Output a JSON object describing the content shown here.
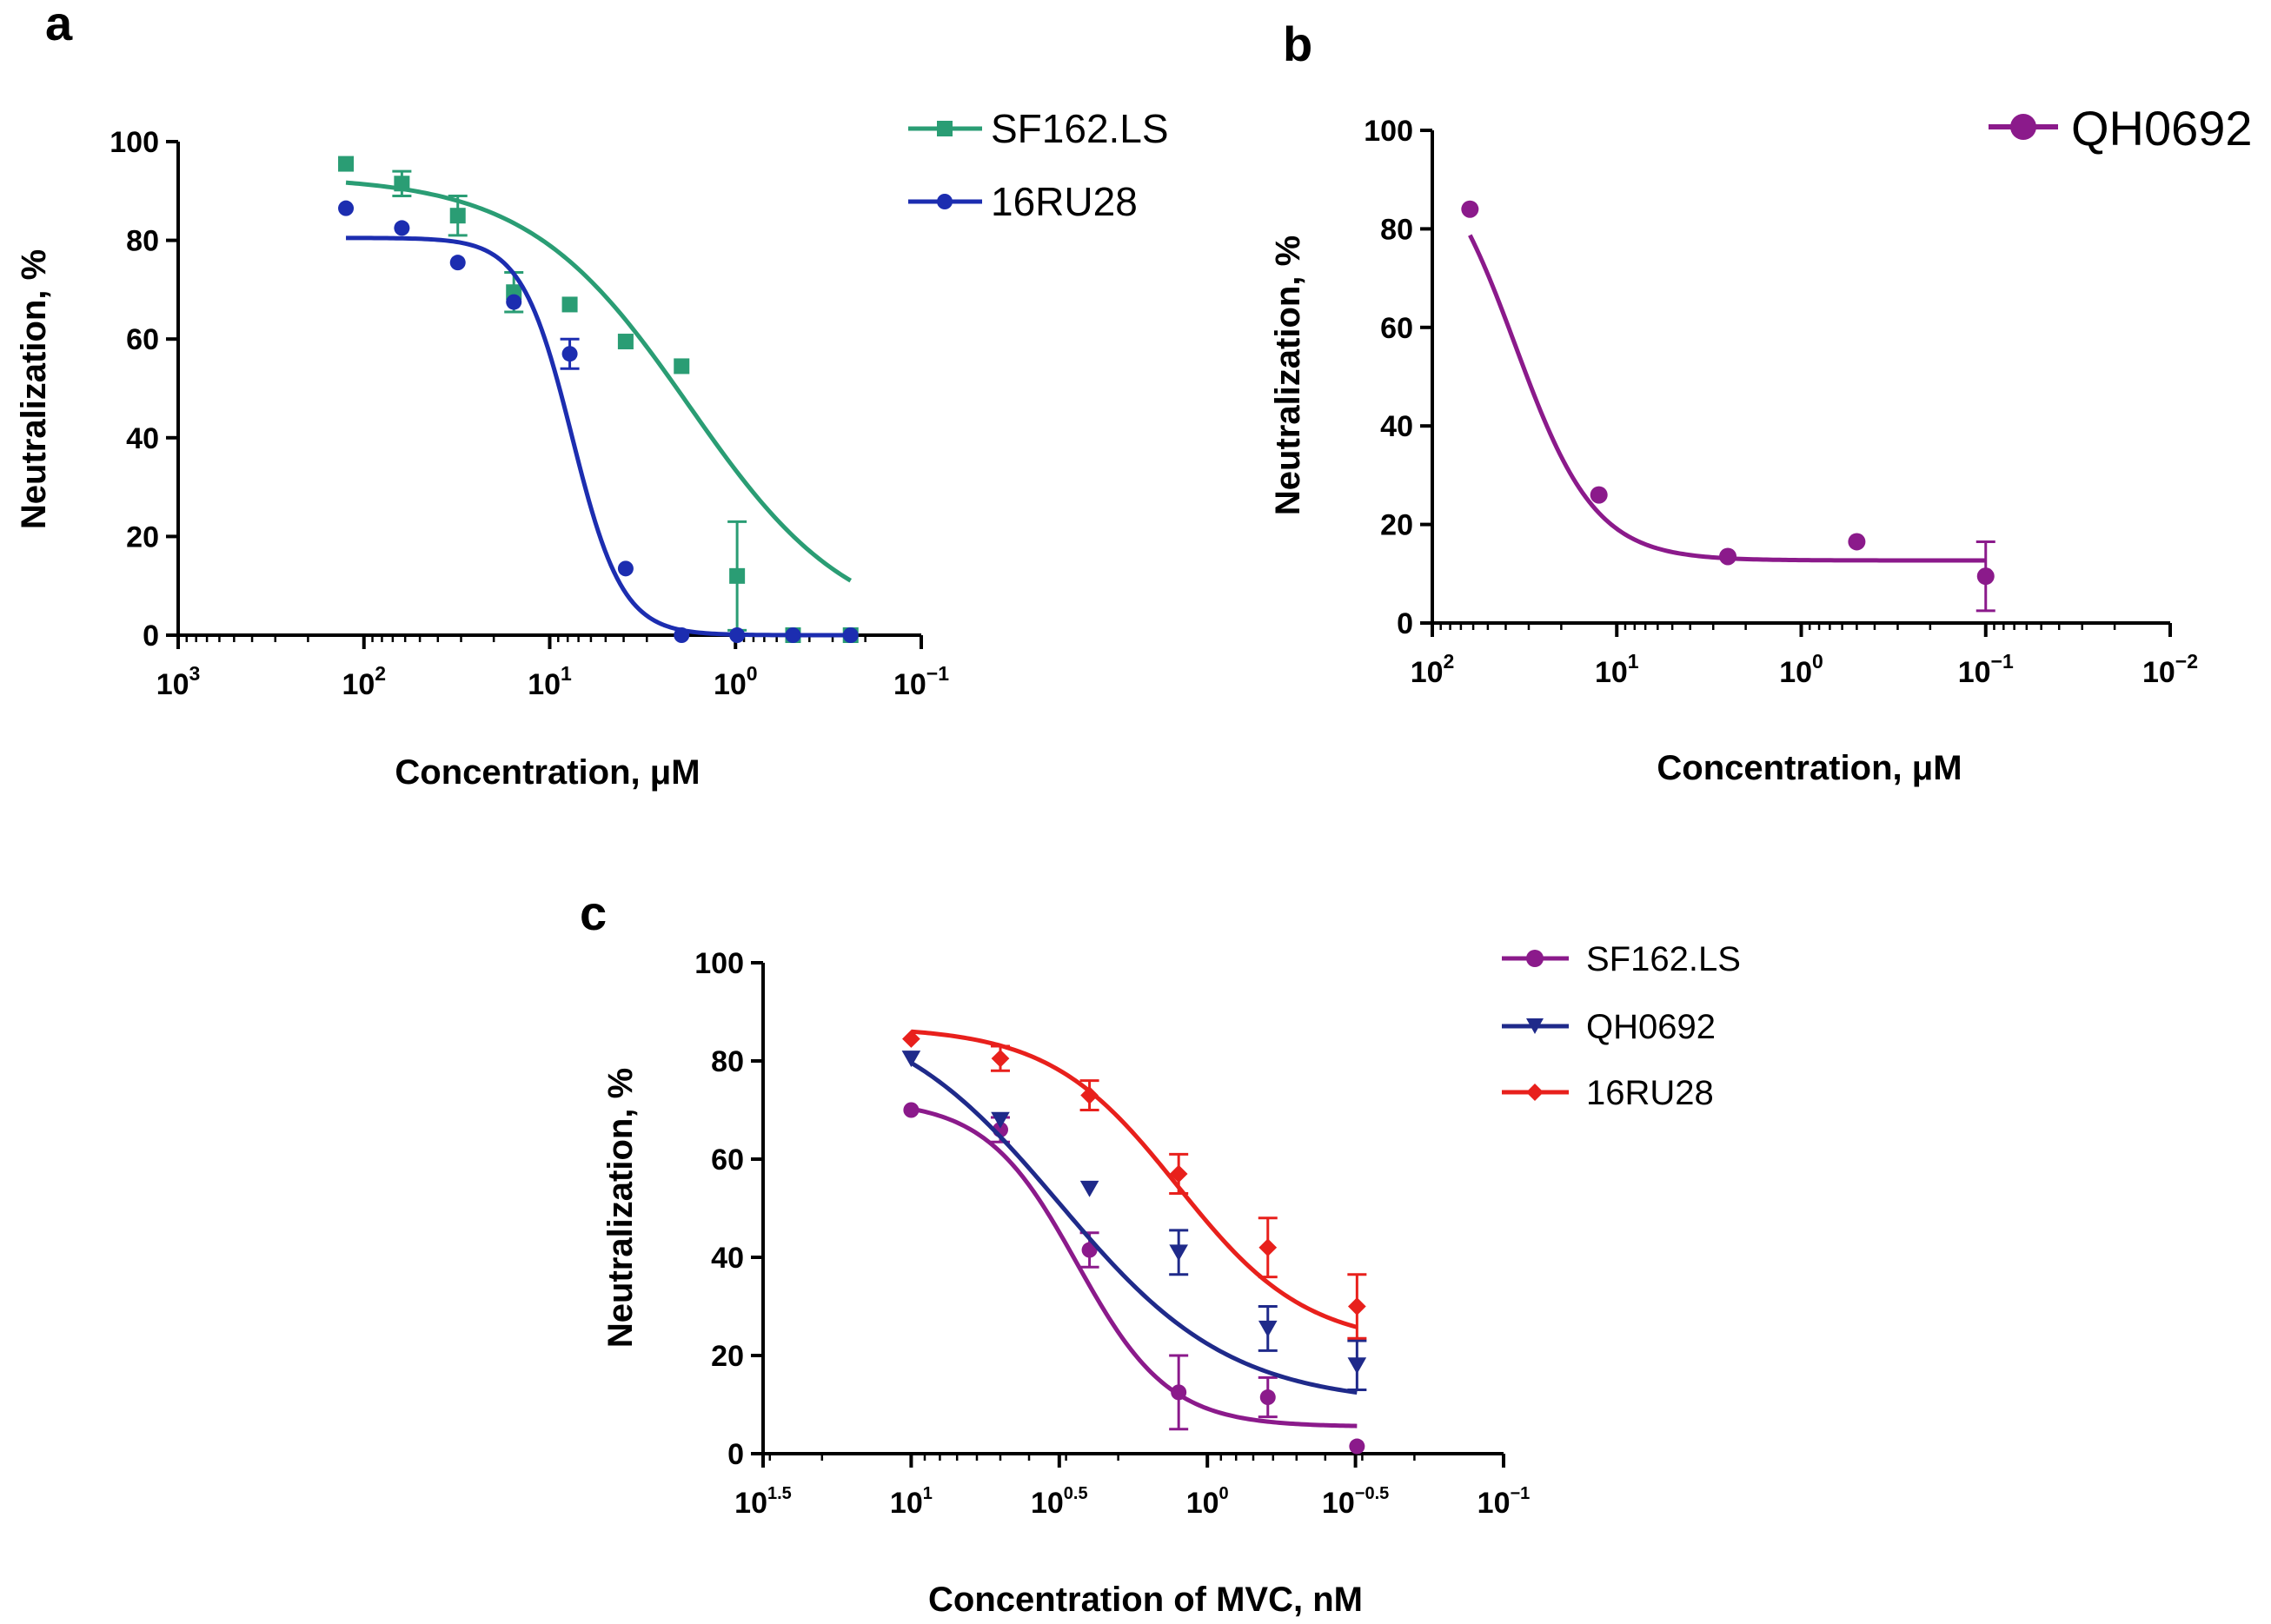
{
  "colors": {
    "green": "#2a9d74",
    "blue": "#1c2db0",
    "purple": "#8b1a8b",
    "navy": "#1f2a8a",
    "red": "#e8201c"
  },
  "chart_data": [
    {
      "id": "a",
      "panel_label": "a",
      "type": "scatter",
      "xscale": "log-reversed",
      "xlabel": "Concentration, μM",
      "ylabel": "Neutralization, %",
      "xlim_log10": [
        3,
        -1
      ],
      "ylim": [
        0,
        100
      ],
      "yticks": [
        0,
        20,
        40,
        60,
        80,
        100
      ],
      "xticks": [
        {
          "log": 3,
          "base": "10",
          "exp": "3"
        },
        {
          "log": 2,
          "base": "10",
          "exp": "2"
        },
        {
          "log": 1,
          "base": "10",
          "exp": "1"
        },
        {
          "log": 0,
          "base": "10",
          "exp": "0"
        },
        {
          "log": -1,
          "base": "10",
          "exp": "−1"
        }
      ],
      "legend_position": "top-right",
      "series": [
        {
          "name": "SF162.LS",
          "marker": "square",
          "color": "#2a9d74",
          "x": [
            125,
            62.5,
            31.25,
            15.6,
            7.8,
            3.9,
            1.95,
            0.98,
            0.49,
            0.24
          ],
          "y": [
            95.5,
            91.5,
            85,
            69.5,
            67,
            59.5,
            54.5,
            12,
            0,
            0
          ],
          "err": [
            0,
            2.5,
            4,
            4,
            0,
            0,
            0,
            11,
            0,
            0
          ],
          "fit": {
            "top": 93,
            "bottom": 0,
            "logEC50": 0.25,
            "slope": 1.0
          }
        },
        {
          "name": "16RU28",
          "marker": "circle",
          "color": "#1c2db0",
          "x": [
            125,
            62.5,
            31.25,
            15.6,
            7.8,
            3.9,
            1.95,
            0.98,
            0.49,
            0.24
          ],
          "y": [
            86.5,
            82.5,
            75.5,
            67.5,
            57,
            13.5,
            0,
            0,
            0,
            0
          ],
          "err": [
            0,
            0,
            0,
            0,
            3,
            0,
            0,
            0,
            0,
            0
          ],
          "fit": {
            "top": 80.5,
            "bottom": 0,
            "logEC50": 0.88,
            "slope": 3.2
          }
        }
      ]
    },
    {
      "id": "b",
      "panel_label": "b",
      "type": "scatter",
      "xscale": "log-reversed",
      "xlabel": "Concentration, μM",
      "ylabel": "Neutralization, %",
      "xlim_log10": [
        2,
        -2
      ],
      "ylim": [
        0,
        100
      ],
      "yticks": [
        0,
        20,
        40,
        60,
        80,
        100
      ],
      "xticks": [
        {
          "log": 2,
          "base": "10",
          "exp": "2"
        },
        {
          "log": 1,
          "base": "10",
          "exp": "1"
        },
        {
          "log": 0,
          "base": "10",
          "exp": "0"
        },
        {
          "log": -1,
          "base": "10",
          "exp": "−1"
        },
        {
          "log": -2,
          "base": "10",
          "exp": "−2"
        }
      ],
      "legend_position": "top-right",
      "series": [
        {
          "name": "QH0692",
          "marker": "circle",
          "color": "#8b1a8b",
          "x": [
            62.5,
            12.5,
            2.5,
            0.5,
            0.1
          ],
          "y": [
            84,
            26,
            13.5,
            16.5,
            9.5
          ],
          "err": [
            0,
            0,
            0,
            0,
            7
          ],
          "fit": {
            "top": 100,
            "bottom": 12.7,
            "logEC50": 1.55,
            "slope": 2.0
          }
        }
      ]
    },
    {
      "id": "c",
      "panel_label": "c",
      "type": "line",
      "xscale": "log-reversed",
      "xlabel": "Concentration of MVC, nM",
      "ylabel": "Neutralization, %",
      "xlim_log10": [
        1.5,
        -1
      ],
      "ylim": [
        0,
        100
      ],
      "yticks": [
        0,
        20,
        40,
        60,
        80,
        100
      ],
      "xticks": [
        {
          "log": 1.5,
          "base": "10",
          "exp": "1.5"
        },
        {
          "log": 1,
          "base": "10",
          "exp": "1"
        },
        {
          "log": 0.5,
          "base": "10",
          "exp": "0.5"
        },
        {
          "log": 0,
          "base": "10",
          "exp": "0"
        },
        {
          "log": -0.5,
          "base": "10",
          "exp": "−0.5"
        },
        {
          "log": -1,
          "base": "10",
          "exp": "−1"
        }
      ],
      "legend_position": "top-right",
      "series": [
        {
          "name": "SF162.LS",
          "marker": "circle",
          "color": "#8b1a8b",
          "x": [
            10,
            5,
            2.5,
            1.25,
            0.625,
            0.3125
          ],
          "y": [
            70,
            66,
            41.5,
            12.5,
            11.5,
            1.5
          ],
          "err": [
            0,
            2.5,
            3.5,
            7.5,
            4,
            0
          ],
          "fit": {
            "top": 72,
            "bottom": 5.5,
            "logEC50": 0.44,
            "slope": 2.8
          }
        },
        {
          "name": "QH0692",
          "marker": "triangle-down",
          "color": "#1f2a8a",
          "x": [
            10,
            5,
            2.5,
            1.25,
            0.625,
            0.3125
          ],
          "y": [
            80.5,
            68,
            54,
            41,
            25.5,
            18
          ],
          "err": [
            0,
            0,
            0,
            4.5,
            4.5,
            5
          ],
          "fit": {
            "top": 92,
            "bottom": 10,
            "logEC50": 0.5,
            "slope": 1.5
          }
        },
        {
          "name": "16RU28",
          "marker": "diamond",
          "color": "#e8201c",
          "x": [
            10,
            5,
            2.5,
            1.25,
            0.625,
            0.3125
          ],
          "y": [
            84.5,
            80.5,
            73,
            57,
            42,
            30
          ],
          "err": [
            0,
            2.5,
            3,
            4,
            6,
            6.5
          ],
          "fit": {
            "top": 87,
            "bottom": 22,
            "logEC50": 0.1,
            "slope": 2.0
          }
        }
      ]
    }
  ]
}
